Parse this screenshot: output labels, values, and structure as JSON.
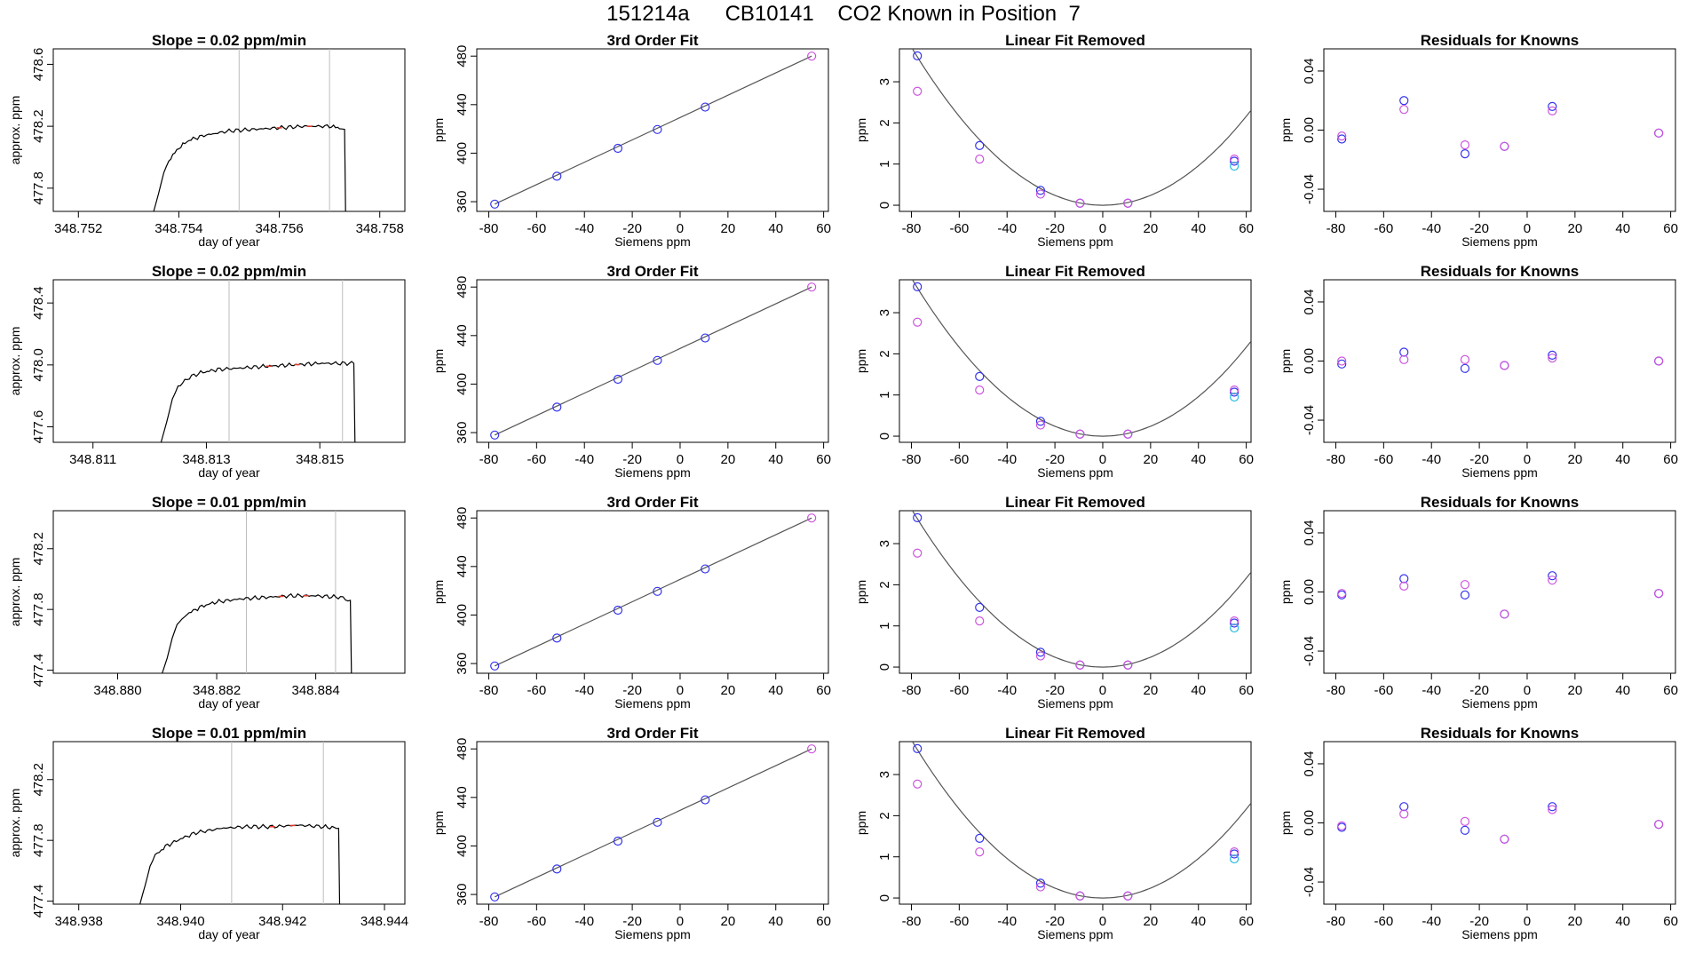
{
  "page_title": "151214a      CB10141    CO2 Known in Position  7",
  "colors": {
    "trace": "#000000",
    "marker": "#e8392a",
    "window_line": "#bdbdbd",
    "fit_line": "#555555",
    "series_blue": "#3333ee",
    "series_magenta": "#cc55dd",
    "series_cyan": "#22bbdd"
  },
  "chart_data": [
    {
      "type": "line",
      "row": 0,
      "col": 0,
      "title": "Slope =  0.02  ppm/min",
      "xlabel": "day of year",
      "ylabel": "approx. ppm",
      "xlim": [
        348.7515,
        348.7585
      ],
      "ylim": [
        477.65,
        478.7
      ],
      "xticks": [
        348.752,
        348.754,
        348.756,
        348.758
      ],
      "xtick_labels": [
        "348.752",
        "348.754",
        "348.756",
        "348.758"
      ],
      "yticks": [
        477.8,
        478.2,
        478.6
      ],
      "ytick_labels": [
        "477.8",
        "478.2",
        "478.6"
      ],
      "window_lines": [
        348.7552,
        348.757
      ],
      "trace": {
        "x": [
          348.7535,
          348.7536,
          348.7537,
          348.7538,
          348.754,
          348.7542,
          348.7545,
          348.755,
          348.7555,
          348.756,
          348.7565,
          348.757,
          348.7572,
          348.7573,
          348.75732
        ],
        "y": [
          477.65,
          477.77,
          477.9,
          477.98,
          478.06,
          478.11,
          478.14,
          478.17,
          478.18,
          478.19,
          478.2,
          478.2,
          478.19,
          478.18,
          477.65
        ]
      },
      "markers_x": [
        348.756,
        348.7566
      ]
    },
    {
      "type": "line",
      "row": 1,
      "col": 0,
      "title": "Slope =  0.02  ppm/min",
      "xlabel": "day of year",
      "ylabel": "approx. ppm",
      "xlim": [
        348.8103,
        348.8165
      ],
      "ylim": [
        477.5,
        478.55
      ],
      "xticks": [
        348.811,
        348.813,
        348.815
      ],
      "xtick_labels": [
        "348.811",
        "348.813",
        "348.815"
      ],
      "yticks": [
        477.6,
        478.0,
        478.4
      ],
      "ytick_labels": [
        "477.6",
        "478.0",
        "478.4"
      ],
      "window_lines": [
        348.8134,
        348.8154
      ],
      "trace": {
        "x": [
          348.8122,
          348.8123,
          348.8124,
          348.8125,
          348.8127,
          348.8129,
          348.8132,
          348.8136,
          348.814,
          348.8145,
          348.815,
          348.8154,
          348.8156,
          348.81562
        ],
        "y": [
          477.5,
          477.63,
          477.78,
          477.86,
          477.92,
          477.95,
          477.97,
          477.98,
          477.99,
          478.0,
          478.01,
          478.01,
          478.01,
          477.5
        ]
      },
      "markers_x": [
        348.8141,
        348.8146
      ]
    },
    {
      "type": "line",
      "row": 2,
      "col": 0,
      "title": "Slope =  0.01  ppm/min",
      "xlabel": "day of year",
      "ylabel": "approx. ppm",
      "xlim": [
        348.8787,
        348.8858
      ],
      "ylim": [
        477.38,
        478.45
      ],
      "xticks": [
        348.88,
        348.882,
        348.884
      ],
      "xtick_labels": [
        "348.880",
        "348.882",
        "348.884"
      ],
      "yticks": [
        477.4,
        477.8,
        478.2
      ],
      "ytick_labels": [
        "477.4",
        "477.8",
        "478.2"
      ],
      "window_lines": [
        348.8826,
        348.8844
      ],
      "trace": {
        "x": [
          348.8809,
          348.881,
          348.8811,
          348.8812,
          348.8814,
          348.8817,
          348.882,
          348.8825,
          348.883,
          348.8835,
          348.884,
          348.8845,
          348.8847,
          348.88472
        ],
        "y": [
          477.38,
          477.48,
          477.61,
          477.7,
          477.77,
          477.82,
          477.85,
          477.87,
          477.88,
          477.89,
          477.89,
          477.88,
          477.86,
          477.38
        ]
      },
      "markers_x": [
        348.8833,
        348.8838
      ]
    },
    {
      "type": "line",
      "row": 3,
      "col": 0,
      "title": "Slope =  0.01  ppm/min",
      "xlabel": "day of year",
      "ylabel": "approx. ppm",
      "xlim": [
        348.9375,
        348.9444
      ],
      "ylim": [
        477.38,
        478.45
      ],
      "xticks": [
        348.938,
        348.94,
        348.942,
        348.944
      ],
      "xtick_labels": [
        "348.938",
        "348.940",
        "348.942",
        "348.944"
      ],
      "yticks": [
        477.4,
        477.8,
        478.2
      ],
      "ytick_labels": [
        "477.4",
        "477.8",
        "478.2"
      ],
      "window_lines": [
        348.941,
        348.9428
      ],
      "trace": {
        "x": [
          348.9392,
          348.9393,
          348.9394,
          348.9395,
          348.9397,
          348.94,
          348.9403,
          348.9408,
          348.9413,
          348.9418,
          348.9423,
          348.9428,
          348.9431,
          348.94312
        ],
        "y": [
          477.38,
          477.5,
          477.63,
          477.7,
          477.76,
          477.81,
          477.85,
          477.88,
          477.89,
          477.89,
          477.9,
          477.89,
          477.88,
          477.38
        ]
      },
      "markers_x": [
        348.9418,
        348.9422
      ]
    },
    {
      "type": "scatter",
      "col": 1,
      "rows": [
        0,
        1,
        2,
        3
      ],
      "title": "3rd Order Fit",
      "xlabel": "Siemens ppm",
      "ylabel": "ppm",
      "xlim": [
        -85,
        62
      ],
      "ylim": [
        352,
        486
      ],
      "xticks": [
        -80,
        -60,
        -40,
        -20,
        0,
        20,
        40,
        60
      ],
      "xtick_labels": [
        "-80",
        "-60",
        "-40",
        "-20",
        "0",
        "20",
        "40",
        "60"
      ],
      "yticks": [
        360,
        400,
        440,
        480
      ],
      "ytick_labels": [
        "360",
        "400",
        "440",
        "480"
      ],
      "fit_line": {
        "x": [
          -77.5,
          55
        ],
        "y": [
          358,
          480
        ]
      },
      "points": {
        "x": [
          -77.5,
          -51.5,
          -26,
          -9.5,
          10.5,
          55
        ],
        "y": [
          358,
          381,
          404,
          419.5,
          438,
          480
        ]
      },
      "point_colors": [
        "blue",
        "blue",
        "blue",
        "blue",
        "blue",
        "magenta"
      ]
    },
    {
      "type": "scatter",
      "col": 2,
      "rows": [
        0,
        1,
        2,
        3
      ],
      "title": "Linear Fit Removed",
      "xlabel": "Siemens ppm",
      "ylabel": "ppm",
      "xlim": [
        -85,
        62
      ],
      "ylim": [
        -0.15,
        3.8
      ],
      "xticks": [
        -80,
        -60,
        -40,
        -20,
        0,
        20,
        40,
        60
      ],
      "xtick_labels": [
        "-80",
        "-60",
        "-40",
        "-20",
        "0",
        "20",
        "40",
        "60"
      ],
      "yticks": [
        0,
        1,
        2,
        3
      ],
      "ytick_labels": [
        "0",
        "1",
        "2",
        "3"
      ],
      "curve_coeff": 0.0006,
      "series": [
        {
          "color": "blue",
          "x": [
            -77.5,
            -51.5,
            -26,
            -9.5,
            10.5,
            55
          ],
          "y": [
            3.63,
            1.45,
            0.36,
            0.05,
            0.05,
            1.07
          ]
        },
        {
          "color": "magenta",
          "x": [
            -77.5,
            -51.5,
            -26,
            -9.5,
            10.5,
            55
          ],
          "y": [
            2.77,
            1.12,
            0.27,
            0.05,
            0.05,
            1.12
          ]
        },
        {
          "color": "cyan",
          "x": [
            55
          ],
          "y": [
            0.95
          ]
        }
      ]
    },
    {
      "type": "scatter",
      "row": 0,
      "col": 3,
      "title": "Residuals for Knowns",
      "xlabel": "Siemens ppm",
      "ylabel": "ppm",
      "xlim": [
        -85,
        62
      ],
      "ylim": [
        -0.055,
        0.055
      ],
      "xticks": [
        -80,
        -60,
        -40,
        -20,
        0,
        20,
        40,
        60
      ],
      "xtick_labels": [
        "-80",
        "-60",
        "-40",
        "-20",
        "0",
        "20",
        "40",
        "60"
      ],
      "yticks": [
        -0.04,
        0.0,
        0.04
      ],
      "ytick_labels": [
        "-0.04",
        "0.00",
        "0.04"
      ],
      "series": [
        {
          "color": "blue",
          "x": [
            -77.5,
            -51.5,
            -26,
            -9.5,
            10.5,
            55
          ],
          "y": [
            -0.006,
            0.02,
            -0.016,
            -0.011,
            0.016,
            -0.002
          ]
        },
        {
          "color": "magenta",
          "x": [
            -77.5,
            -51.5,
            -26,
            -9.5,
            10.5,
            55
          ],
          "y": [
            -0.004,
            0.014,
            -0.01,
            -0.011,
            0.013,
            -0.002
          ]
        }
      ]
    },
    {
      "type": "scatter",
      "row": 1,
      "col": 3,
      "title": "Residuals for Knowns",
      "xlabel": "Siemens ppm",
      "ylabel": "ppm",
      "xlim": [
        -85,
        62
      ],
      "ylim": [
        -0.055,
        0.055
      ],
      "xticks": [
        -80,
        -60,
        -40,
        -20,
        0,
        20,
        40,
        60
      ],
      "xtick_labels": [
        "-80",
        "-60",
        "-40",
        "-20",
        "0",
        "20",
        "40",
        "60"
      ],
      "yticks": [
        -0.04,
        0.0,
        0.04
      ],
      "ytick_labels": [
        "-0.04",
        "0.00",
        "0.04"
      ],
      "series": [
        {
          "color": "blue",
          "x": [
            -77.5,
            -51.5,
            -26,
            -9.5,
            10.5,
            55
          ],
          "y": [
            -0.002,
            0.006,
            -0.005,
            -0.003,
            0.004,
            0.0
          ]
        },
        {
          "color": "magenta",
          "x": [
            -77.5,
            -51.5,
            -26,
            -9.5,
            10.5,
            55
          ],
          "y": [
            0.0,
            0.001,
            0.001,
            -0.003,
            0.002,
            0.0
          ]
        }
      ]
    },
    {
      "type": "scatter",
      "row": 2,
      "col": 3,
      "title": "Residuals for Knowns",
      "xlabel": "Siemens ppm",
      "ylabel": "ppm",
      "xlim": [
        -85,
        62
      ],
      "ylim": [
        -0.055,
        0.055
      ],
      "xticks": [
        -80,
        -60,
        -40,
        -20,
        0,
        20,
        40,
        60
      ],
      "xtick_labels": [
        "-80",
        "-60",
        "-40",
        "-20",
        "0",
        "20",
        "40",
        "60"
      ],
      "yticks": [
        -0.04,
        0.0,
        0.04
      ],
      "ytick_labels": [
        "-0.04",
        "0.00",
        "0.04"
      ],
      "series": [
        {
          "color": "blue",
          "x": [
            -77.5,
            -51.5,
            -26,
            -9.5,
            10.5,
            55
          ],
          "y": [
            -0.002,
            0.009,
            -0.002,
            -0.015,
            0.011,
            -0.001
          ]
        },
        {
          "color": "magenta",
          "x": [
            -77.5,
            -51.5,
            -26,
            -9.5,
            10.5,
            55
          ],
          "y": [
            -0.001,
            0.004,
            0.005,
            -0.015,
            0.008,
            -0.001
          ]
        }
      ]
    },
    {
      "type": "scatter",
      "row": 3,
      "col": 3,
      "title": "Residuals for Knowns",
      "xlabel": "Siemens ppm",
      "ylabel": "ppm",
      "xlim": [
        -85,
        62
      ],
      "ylim": [
        -0.055,
        0.055
      ],
      "xticks": [
        -80,
        -60,
        -40,
        -20,
        0,
        20,
        40,
        60
      ],
      "xtick_labels": [
        "-80",
        "-60",
        "-40",
        "-20",
        "0",
        "20",
        "40",
        "60"
      ],
      "yticks": [
        -0.04,
        0.0,
        0.04
      ],
      "ytick_labels": [
        "-0.04",
        "0.00",
        "0.04"
      ],
      "series": [
        {
          "color": "blue",
          "x": [
            -77.5,
            -51.5,
            -26,
            -9.5,
            10.5,
            55
          ],
          "y": [
            -0.003,
            0.011,
            -0.005,
            -0.011,
            0.011,
            -0.001
          ]
        },
        {
          "color": "magenta",
          "x": [
            -77.5,
            -51.5,
            -26,
            -9.5,
            10.5,
            55
          ],
          "y": [
            -0.002,
            0.006,
            0.001,
            -0.011,
            0.009,
            -0.001
          ]
        }
      ]
    }
  ]
}
